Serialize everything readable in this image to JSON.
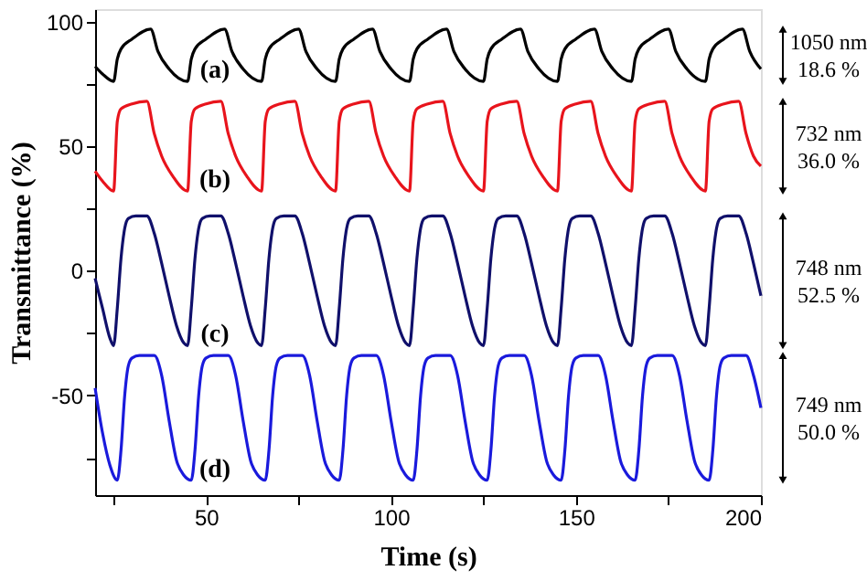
{
  "chart_data": {
    "type": "line",
    "xlabel": "Time (s)",
    "ylabel": "Transmittance (%)",
    "xlim": [
      20,
      200
    ],
    "ylim": [
      -90,
      105
    ],
    "xticks": [
      {
        "value": 25,
        "label": null
      },
      50,
      {
        "value": 75,
        "label": null
      },
      100,
      {
        "value": 125,
        "label": null
      },
      150,
      {
        "value": 175,
        "label": null
      },
      200
    ],
    "yticks": [
      {
        "value": -75,
        "label": null
      },
      -50,
      {
        "value": -25,
        "label": null
      },
      0,
      {
        "value": 25,
        "label": null
      },
      50,
      {
        "value": 75,
        "label": null
      },
      100
    ],
    "grid": false,
    "line_style": "solid",
    "marker": "none",
    "series": [
      {
        "color": "#000000",
        "x": [
          20,
          22,
          25,
          26,
          27,
          30,
          35,
          37,
          40,
          45,
          46,
          47,
          50,
          55,
          57,
          60,
          65,
          66,
          67,
          70,
          75,
          77,
          80,
          85,
          86,
          87,
          90,
          95,
          97,
          100,
          105,
          106,
          107,
          110,
          115,
          117,
          120,
          125,
          126,
          127,
          130,
          135,
          137,
          140,
          145,
          146,
          147,
          150,
          155,
          157,
          160,
          165,
          166,
          167,
          170,
          175,
          177,
          180,
          185,
          186,
          187,
          190,
          195,
          197,
          200
        ],
        "values": [
          82,
          79,
          76,
          85,
          89,
          93,
          97,
          88,
          81,
          76,
          85,
          89,
          93,
          97,
          88,
          81,
          76,
          85,
          89,
          93,
          97,
          88,
          81,
          76,
          85,
          89,
          93,
          97,
          88,
          81,
          76,
          85,
          89,
          93,
          97,
          88,
          81,
          76,
          85,
          89,
          93,
          97,
          88,
          81,
          76,
          85,
          89,
          93,
          97,
          88,
          81,
          76,
          85,
          89,
          93,
          97,
          88,
          81,
          76,
          85,
          89,
          93,
          97,
          88,
          81
        ]
      },
      {
        "color": "#e8141c",
        "x": [
          20,
          22,
          25,
          26,
          27,
          30,
          34,
          36,
          38,
          41,
          45,
          46,
          47,
          50,
          54,
          56,
          58,
          61,
          65,
          66,
          67,
          70,
          74,
          76,
          78,
          81,
          85,
          86,
          87,
          90,
          94,
          96,
          98,
          101,
          105,
          106,
          107,
          110,
          114,
          116,
          118,
          121,
          125,
          126,
          127,
          130,
          134,
          136,
          138,
          141,
          145,
          146,
          147,
          150,
          154,
          156,
          158,
          161,
          165,
          166,
          167,
          170,
          174,
          176,
          178,
          181,
          185,
          186,
          187,
          190,
          194,
          196,
          198,
          200
        ],
        "values": [
          40,
          36,
          32,
          60,
          65,
          67,
          68,
          55,
          46,
          38,
          32,
          60,
          65,
          67,
          68,
          55,
          46,
          38,
          32,
          60,
          65,
          67,
          68,
          55,
          46,
          38,
          32,
          60,
          65,
          67,
          68,
          55,
          46,
          38,
          32,
          60,
          65,
          67,
          68,
          55,
          46,
          38,
          32,
          60,
          65,
          67,
          68,
          55,
          46,
          38,
          32,
          60,
          65,
          67,
          68,
          55,
          46,
          38,
          32,
          60,
          65,
          67,
          68,
          55,
          46,
          38,
          32,
          60,
          65,
          67,
          68,
          55,
          46,
          42
        ]
      },
      {
        "color": "#10106b",
        "x": [
          20,
          22,
          24,
          25,
          26,
          27,
          28,
          29,
          31,
          34,
          36,
          38,
          40,
          42,
          44,
          45,
          46,
          47,
          48,
          49,
          51,
          54,
          56,
          58,
          60,
          62,
          64,
          65,
          66,
          67,
          68,
          69,
          71,
          74,
          76,
          78,
          80,
          82,
          84,
          85,
          86,
          87,
          88,
          89,
          91,
          94,
          96,
          98,
          100,
          102,
          104,
          105,
          106,
          107,
          108,
          109,
          111,
          114,
          116,
          118,
          120,
          122,
          124,
          125,
          126,
          127,
          128,
          129,
          131,
          134,
          136,
          138,
          140,
          142,
          144,
          145,
          146,
          147,
          148,
          149,
          151,
          154,
          156,
          158,
          160,
          162,
          164,
          165,
          166,
          167,
          168,
          169,
          171,
          174,
          176,
          178,
          180,
          182,
          184,
          185,
          186,
          187,
          188,
          189,
          191,
          194,
          196,
          198,
          200
        ],
        "values": [
          -3,
          -15,
          -27,
          -30,
          -15,
          5,
          17,
          21,
          22,
          22,
          15,
          3,
          -10,
          -22,
          -29,
          -30,
          -15,
          5,
          17,
          21,
          22,
          22,
          15,
          3,
          -10,
          -22,
          -29,
          -30,
          -15,
          5,
          17,
          21,
          22,
          22,
          15,
          3,
          -10,
          -22,
          -29,
          -30,
          -15,
          5,
          17,
          21,
          22,
          22,
          15,
          3,
          -10,
          -22,
          -29,
          -30,
          -15,
          5,
          17,
          21,
          22,
          22,
          15,
          3,
          -10,
          -22,
          -29,
          -30,
          -15,
          5,
          17,
          21,
          22,
          22,
          15,
          3,
          -10,
          -22,
          -29,
          -30,
          -15,
          5,
          17,
          21,
          22,
          22,
          15,
          3,
          -10,
          -22,
          -29,
          -30,
          -15,
          5,
          17,
          21,
          22,
          22,
          15,
          3,
          -10,
          -22,
          -29,
          -30,
          -15,
          5,
          17,
          21,
          22,
          22,
          15,
          3,
          -10
        ]
      },
      {
        "color": "#1a1adc",
        "x": [
          20,
          22,
          24,
          26,
          27,
          28,
          29,
          30,
          32,
          36,
          38,
          40,
          42,
          44,
          46,
          47,
          48,
          49,
          50,
          52,
          56,
          58,
          60,
          62,
          64,
          66,
          67,
          68,
          69,
          70,
          72,
          76,
          78,
          80,
          82,
          84,
          86,
          87,
          88,
          89,
          90,
          92,
          96,
          98,
          100,
          102,
          104,
          106,
          107,
          108,
          109,
          110,
          112,
          116,
          118,
          120,
          122,
          124,
          126,
          127,
          128,
          129,
          130,
          132,
          136,
          138,
          140,
          142,
          144,
          146,
          147,
          148,
          149,
          150,
          152,
          156,
          158,
          160,
          162,
          164,
          166,
          167,
          168,
          169,
          170,
          172,
          176,
          178,
          180,
          182,
          184,
          186,
          187,
          188,
          189,
          190,
          192,
          196,
          198,
          200
        ],
        "values": [
          -47,
          -65,
          -78,
          -84,
          -72,
          -50,
          -38,
          -35,
          -34,
          -34,
          -42,
          -60,
          -76,
          -82,
          -84,
          -72,
          -50,
          -38,
          -35,
          -34,
          -34,
          -42,
          -60,
          -76,
          -82,
          -84,
          -72,
          -50,
          -38,
          -35,
          -34,
          -34,
          -42,
          -60,
          -76,
          -82,
          -84,
          -72,
          -50,
          -38,
          -35,
          -34,
          -34,
          -42,
          -60,
          -76,
          -82,
          -84,
          -72,
          -50,
          -38,
          -35,
          -34,
          -34,
          -42,
          -60,
          -76,
          -82,
          -84,
          -72,
          -50,
          -38,
          -35,
          -34,
          -34,
          -42,
          -60,
          -76,
          -82,
          -84,
          -72,
          -50,
          -38,
          -35,
          -34,
          -34,
          -42,
          -60,
          -76,
          -82,
          -84,
          -72,
          -50,
          -38,
          -35,
          -34,
          -34,
          -42,
          -60,
          -76,
          -82,
          -84,
          -72,
          -50,
          -38,
          -35,
          -34,
          -34,
          -42,
          -55
        ]
      }
    ],
    "annotations": [
      "(a)",
      "1050 nm",
      "18.6 %",
      "(b)",
      "732 nm",
      "36.0 %",
      "(c)",
      "748 nm",
      "52.5 %",
      "(d)",
      "749 nm",
      "50.0 %"
    ]
  }
}
